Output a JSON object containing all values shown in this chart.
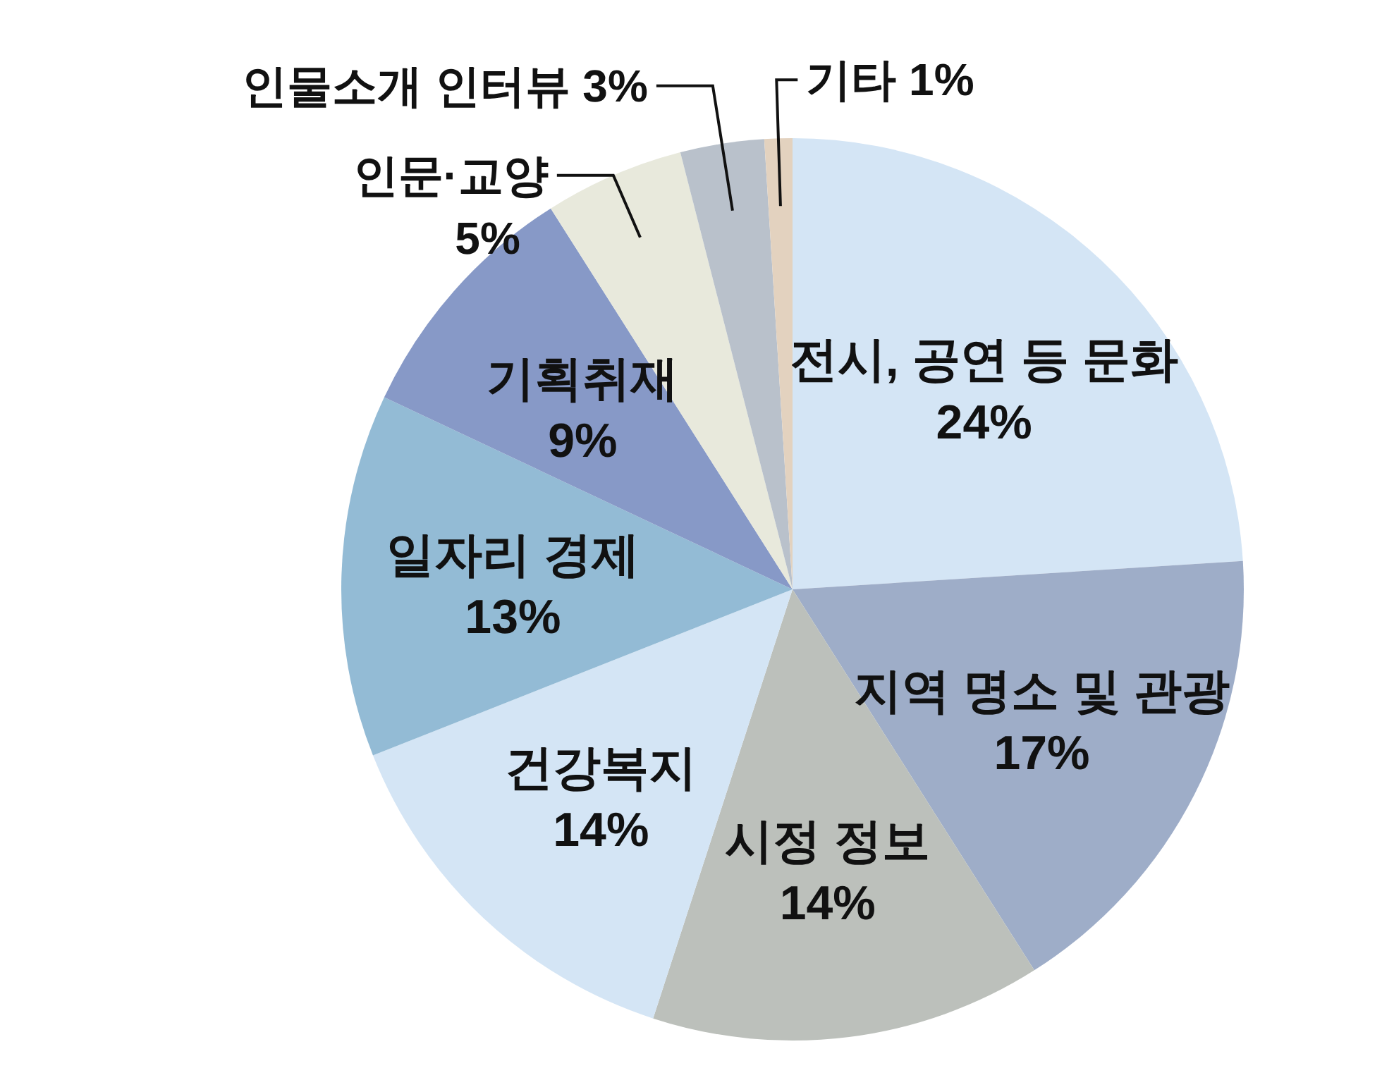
{
  "chart_data": {
    "type": "pie",
    "categories": [
      "전시, 공연 등 문화",
      "지역 명소 및 관광",
      "시정 정보",
      "건강복지",
      "일자리 경제",
      "기획취재",
      "인문·교양",
      "인물소개 인터뷰",
      "기타"
    ],
    "values": [
      24,
      17,
      14,
      14,
      13,
      9,
      5,
      3,
      1
    ],
    "value_labels": [
      "24%",
      "17%",
      "14%",
      "14%",
      "13%",
      "9%",
      "5%",
      "3%",
      "1%"
    ],
    "colors": [
      "#d4e5f5",
      "#9eadc8",
      "#bcc0bb",
      "#d4e5f5",
      "#93bbd5",
      "#8799c7",
      "#e8e9dc",
      "#b9c1cb",
      "#e3d2bf"
    ],
    "legend": false
  }
}
